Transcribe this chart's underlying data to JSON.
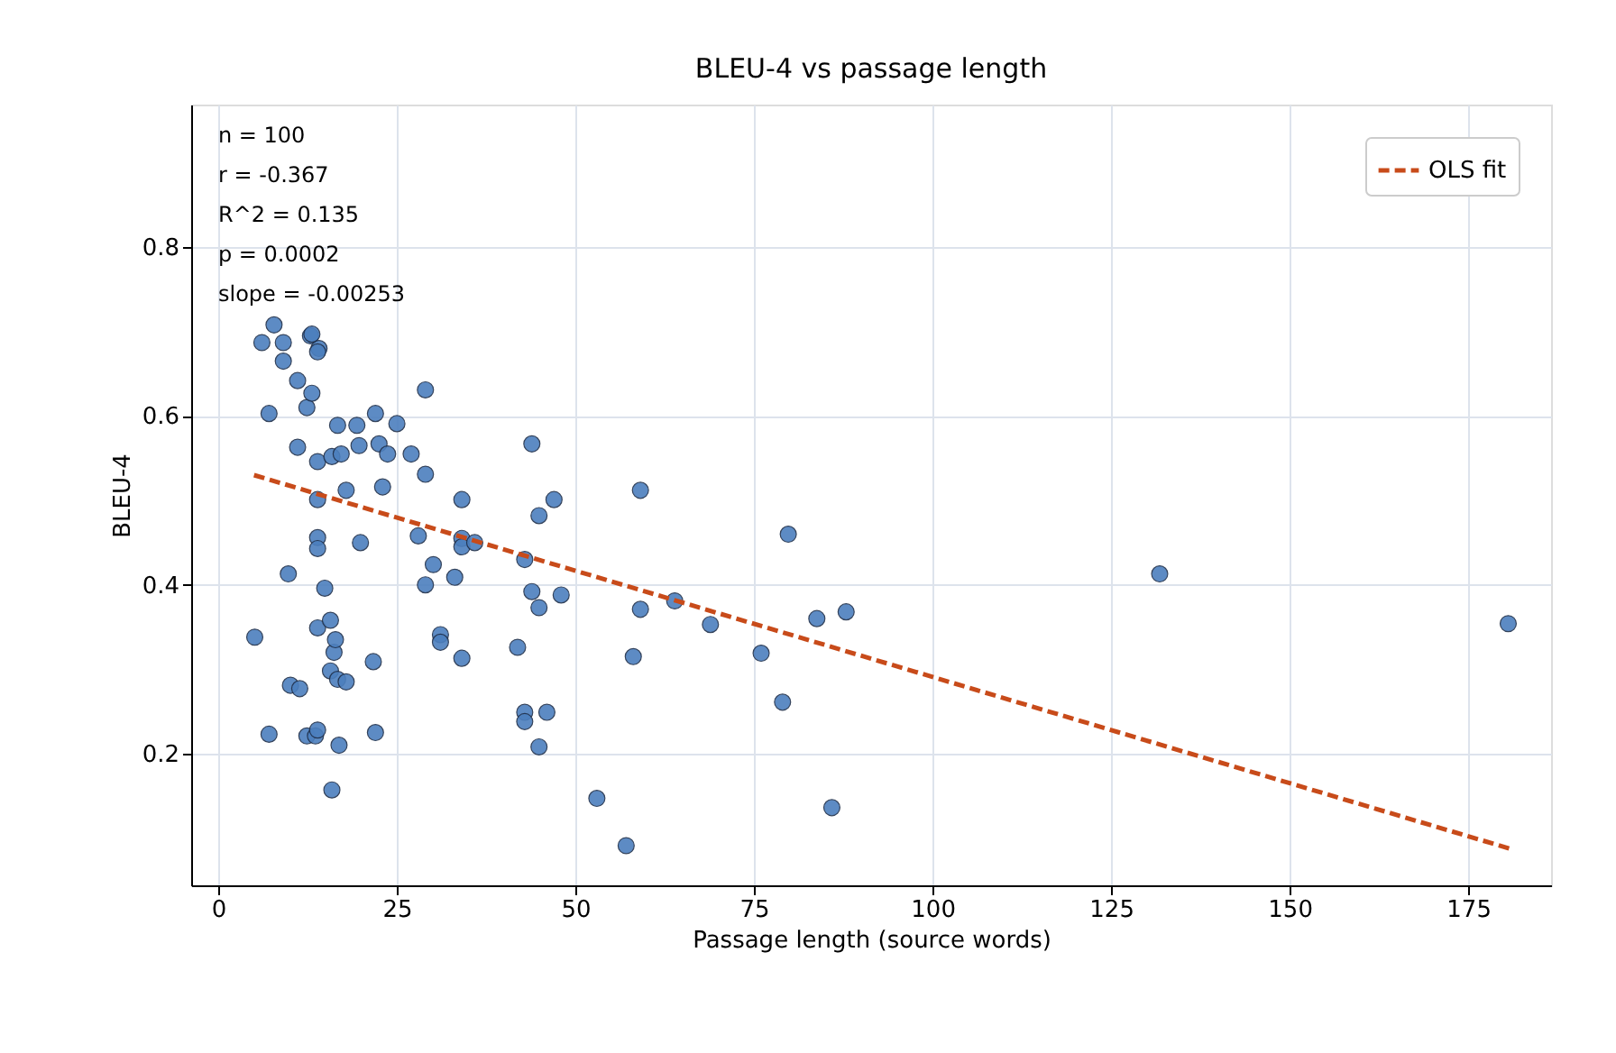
{
  "chart_data": {
    "type": "scatter",
    "title": "BLEU-4 vs passage length",
    "xlabel": "Passage length (source words)",
    "ylabel": "BLEU-4",
    "xlim": [
      -3.8,
      186.6
    ],
    "ylim": [
      0.044,
      0.969
    ],
    "xticks": [
      0,
      25,
      50,
      75,
      100,
      125,
      150,
      175
    ],
    "yticks": [
      0.2,
      0.4,
      0.6,
      0.8
    ],
    "grid": true,
    "legend": "top right",
    "annotations": [
      "n = 100",
      "r = -0.367",
      "R^2 = 0.135",
      "p = 0.0002",
      "slope = -0.00253"
    ],
    "series": [
      {
        "type": "scatter",
        "marker": "circle",
        "color": "#4c7fbe",
        "x": [
          5.1,
          6.1,
          7.1,
          7.1,
          7.8,
          9.1,
          9.1,
          9.8,
          10.1,
          11.1,
          11.1,
          11.4,
          12.4,
          12.4,
          12.9,
          13.1,
          13.6,
          13.9,
          13.9,
          13.9,
          13.9,
          13.9,
          14.1,
          13.9,
          14.9,
          15.7,
          15.7,
          15.9,
          15.9,
          16.2,
          16.4,
          16.7,
          16.9,
          16.7,
          17.2,
          17.9,
          17.9,
          19.4,
          19.7,
          19.9,
          21.7,
          22.0,
          22.0,
          22.5,
          23.0,
          23.7,
          25.0,
          27.0,
          28.0,
          29.0,
          29.0,
          29.0,
          30.1,
          31.1,
          31.1,
          33.1,
          34.1,
          34.1,
          34.1,
          34.1,
          35.9,
          41.9,
          42.9,
          42.9,
          42.9,
          43.9,
          43.9,
          44.9,
          44.9,
          44.9,
          46.0,
          47.0,
          48.0,
          53.0,
          57.1,
          58.1,
          59.1,
          59.1,
          63.9,
          68.9,
          76.0,
          79.0,
          79.8,
          83.8,
          87.9,
          85.9,
          131.8,
          180.6,
          13.1,
          13.9
        ],
        "values": [
          0.338,
          0.687,
          0.603,
          0.223,
          0.708,
          0.665,
          0.687,
          0.413,
          0.281,
          0.642,
          0.563,
          0.277,
          0.221,
          0.61,
          0.695,
          0.627,
          0.221,
          0.228,
          0.546,
          0.456,
          0.443,
          0.501,
          0.68,
          0.349,
          0.396,
          0.298,
          0.358,
          0.552,
          0.157,
          0.32,
          0.335,
          0.288,
          0.21,
          0.589,
          0.555,
          0.512,
          0.285,
          0.589,
          0.565,
          0.45,
          0.309,
          0.225,
          0.603,
          0.567,
          0.516,
          0.555,
          0.591,
          0.555,
          0.458,
          0.631,
          0.531,
          0.4,
          0.424,
          0.341,
          0.332,
          0.409,
          0.455,
          0.445,
          0.501,
          0.313,
          0.45,
          0.326,
          0.43,
          0.249,
          0.238,
          0.567,
          0.392,
          0.482,
          0.373,
          0.208,
          0.249,
          0.501,
          0.388,
          0.147,
          0.091,
          0.315,
          0.512,
          0.371,
          0.381,
          0.353,
          0.319,
          0.261,
          0.46,
          0.36,
          0.368,
          0.136,
          0.413,
          0.354,
          0.697,
          0.676
        ]
      },
      {
        "type": "line",
        "name": "OLS fit",
        "color": "#c84b1a",
        "line_style": "dashed",
        "x": [
          5,
          181
        ],
        "values": [
          0.53,
          0.087
        ]
      }
    ]
  }
}
